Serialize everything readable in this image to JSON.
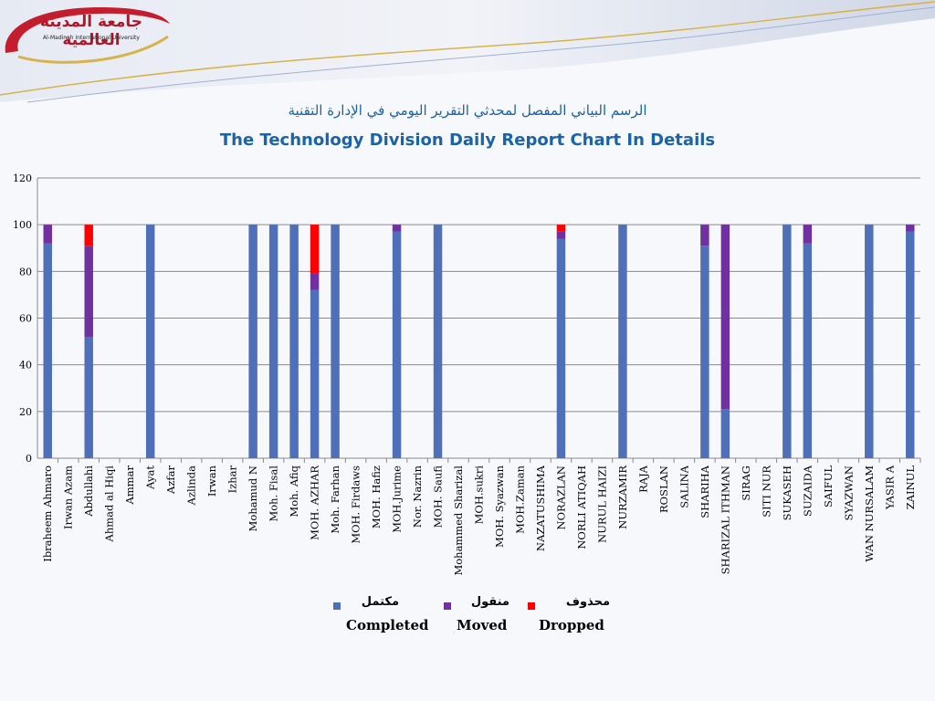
{
  "logo": {
    "arabic_text": "جامعة المدينة العالمية",
    "english_text": "Al-Madinah International University"
  },
  "colors": {
    "completed": "#4f6fb8",
    "moved": "#7030a0",
    "dropped": "#ff0000",
    "title": "#1a63a8"
  },
  "titles": {
    "arabic": "الرسم البياني المفصل لمحدثي التقرير اليومي في الإدارة التقنية",
    "english": "The Technology Division Daily Report Chart In Details"
  },
  "legend": [
    {
      "arabic": "مكتمل",
      "english": "Completed"
    },
    {
      "arabic": "منقول",
      "english": "Moved"
    },
    {
      "arabic": "محذوف",
      "english": "Dropped"
    }
  ],
  "chart_data": {
    "type": "bar",
    "stacked": true,
    "categories": [
      "Ibraheem Ahmaro",
      "Irwan Azam",
      "Abdullahi",
      "Ahmad al Hiqi",
      "Ammar",
      "Ayat",
      "Azfar",
      "Azlinda",
      "Irwan",
      "Izhar",
      "Mohamud N",
      "Moh. Fisal",
      "Moh. Afiq",
      "MOH. AZHAR",
      "Moh. Farhan",
      "MOH. Firdaws",
      "MOH. Hafiz",
      "MOH.Jurime",
      "Nor. Nazrin",
      "MOH. Saufi",
      "Mohammed Sharizal",
      "MOH.sukri",
      "MOH. Syazwan",
      "MOH.Zaman",
      "NAZATUSHIMA",
      "NORAZLAN",
      "NORLI ATIQAH",
      "NURUL HAIZI",
      "NURZAMIR",
      "RAJA",
      "ROSLAN",
      "SALINA",
      "SHARIHA",
      "SHARIZAL ITHMAN",
      "SIRAG",
      "SITI NUR",
      "SUKASEH",
      "SUZAIDA",
      "SAIFUL",
      "SYAZWAN",
      "WAN NURSALAM",
      "YASIR A",
      "ZAINUL"
    ],
    "series": [
      {
        "name": "Completed",
        "values": [
          92,
          0,
          52,
          0,
          0,
          100,
          0,
          0,
          0,
          0,
          100,
          100,
          100,
          72,
          100,
          0,
          0,
          97,
          0,
          100,
          0,
          0,
          0,
          0,
          0,
          94,
          0,
          0,
          100,
          0,
          0,
          0,
          91,
          21,
          0,
          0,
          100,
          92,
          0,
          0,
          100,
          0,
          97
        ]
      },
      {
        "name": "Moved",
        "values": [
          8,
          0,
          39,
          0,
          0,
          0,
          0,
          0,
          0,
          0,
          0,
          0,
          0,
          7,
          0,
          0,
          0,
          3,
          0,
          0,
          0,
          0,
          0,
          0,
          0,
          3,
          0,
          0,
          0,
          0,
          0,
          0,
          9,
          79,
          0,
          0,
          0,
          8,
          0,
          0,
          0,
          0,
          3
        ]
      },
      {
        "name": "Dropped",
        "values": [
          0,
          0,
          9,
          0,
          0,
          0,
          0,
          0,
          0,
          0,
          0,
          0,
          0,
          21,
          0,
          0,
          0,
          0,
          0,
          0,
          0,
          0,
          0,
          0,
          0,
          3,
          0,
          0,
          0,
          0,
          0,
          0,
          0,
          0,
          0,
          0,
          0,
          0,
          0,
          0,
          0,
          0,
          0
        ]
      }
    ],
    "ylim": [
      0,
      120
    ],
    "yticks": [
      0,
      20,
      40,
      60,
      80,
      100,
      120
    ],
    "grid": true
  }
}
